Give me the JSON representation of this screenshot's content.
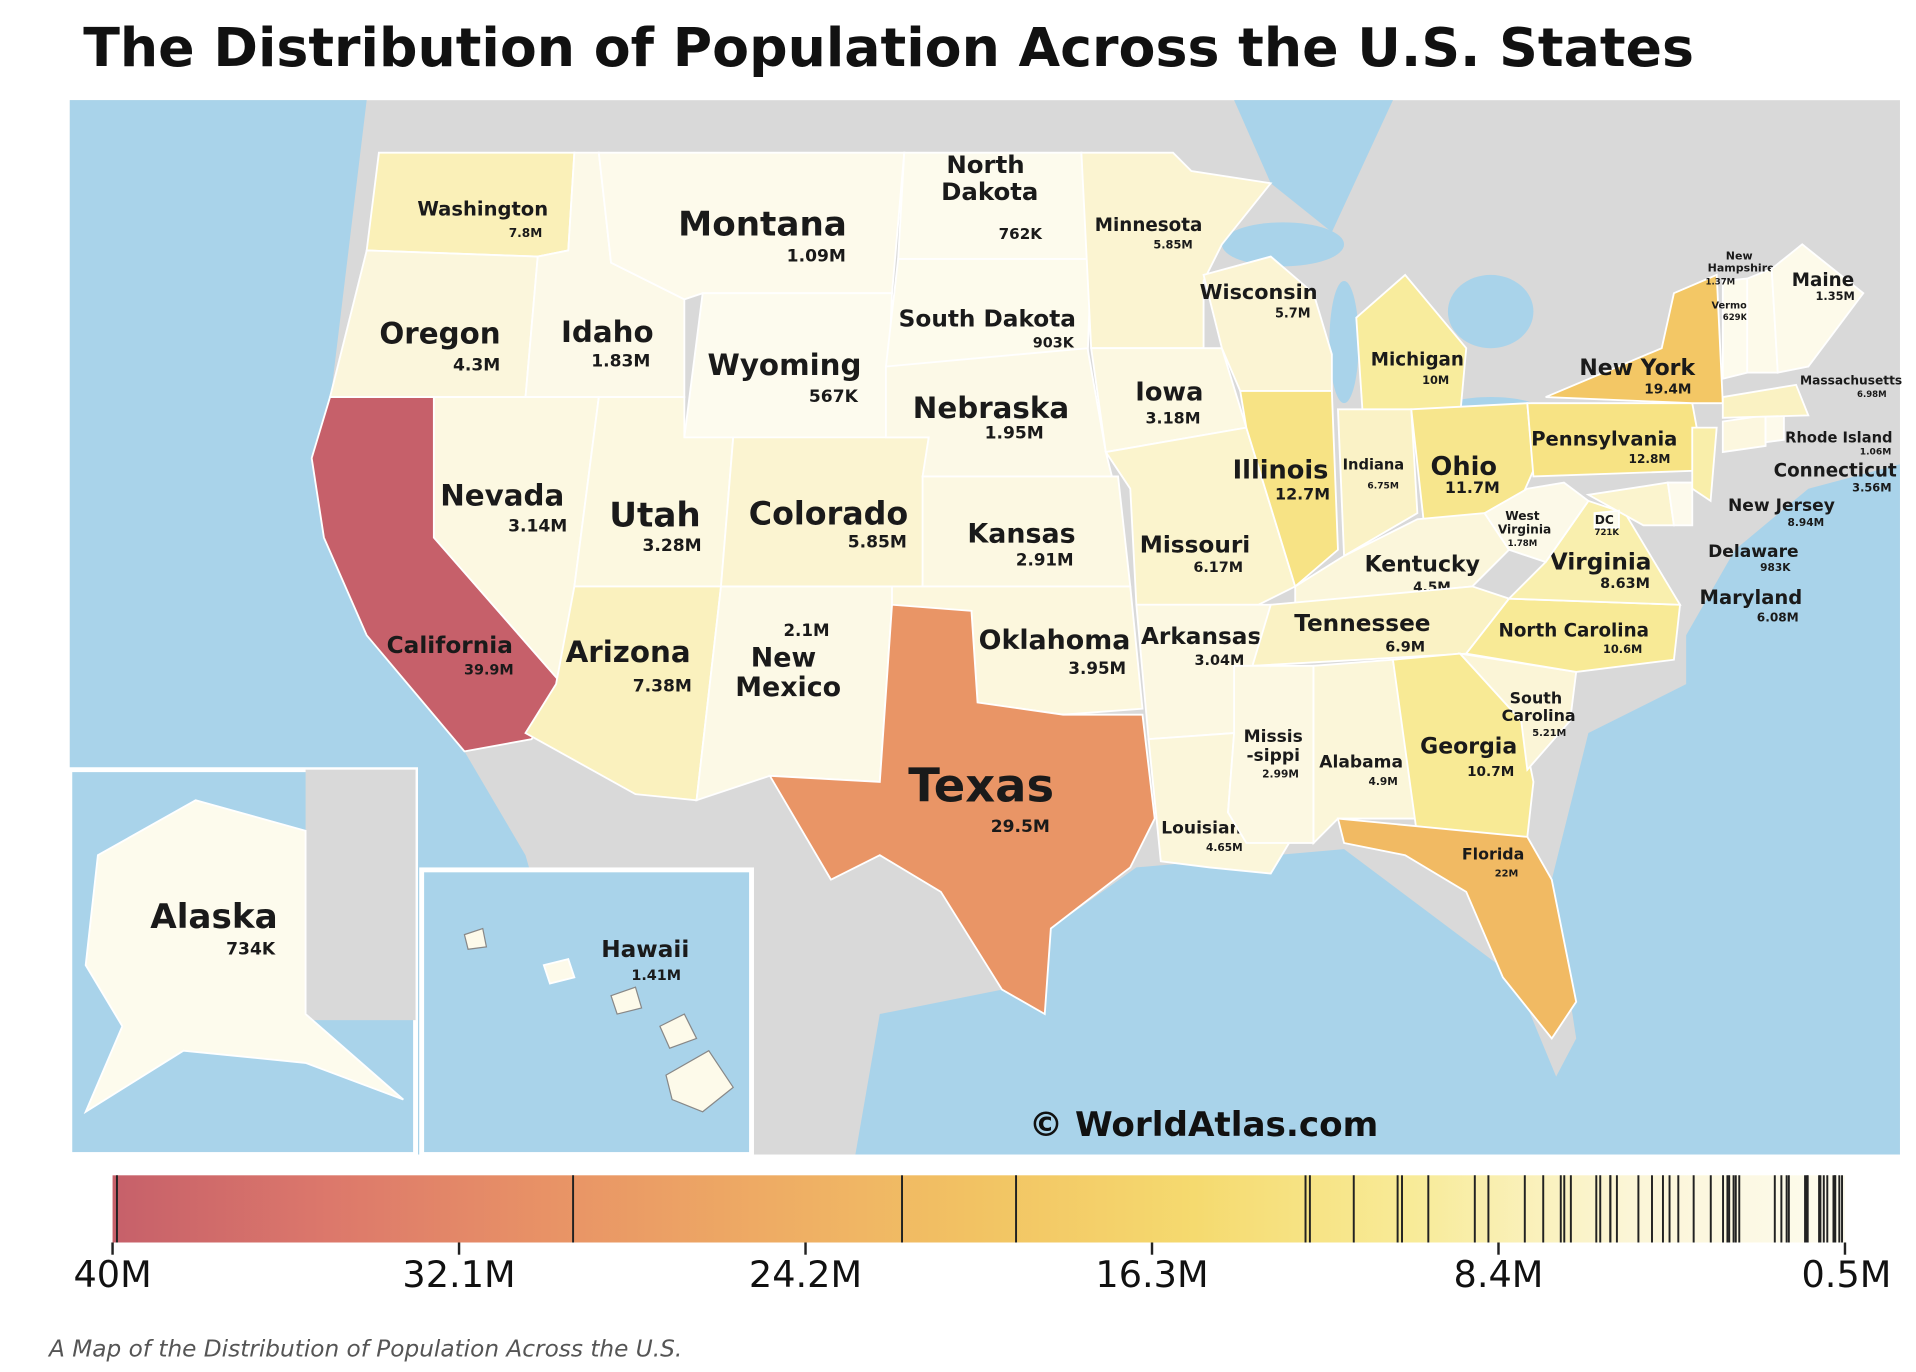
{
  "title": "The Distribution of Population Across the U.S. States",
  "map": {
    "states": [
      {
        "name": "Washington",
        "population": 7800000,
        "label": "7.8M"
      },
      {
        "name": "Oregon",
        "population": 4300000,
        "label": "4.3M"
      },
      {
        "name": "California",
        "population": 39900000,
        "label": "39.9M"
      },
      {
        "name": "Idaho",
        "population": 1830000,
        "label": "1.83M"
      },
      {
        "name": "Nevada",
        "population": 3140000,
        "label": "3.14M"
      },
      {
        "name": "Montana",
        "population": 1090000,
        "label": "1.09M"
      },
      {
        "name": "Wyoming",
        "population": 567000,
        "label": "567K"
      },
      {
        "name": "Utah",
        "population": 3280000,
        "label": "3.28M"
      },
      {
        "name": "Arizona",
        "population": 7380000,
        "label": "7.38M"
      },
      {
        "name": "Colorado",
        "population": 5850000,
        "label": "5.85M"
      },
      {
        "name": "New Mexico",
        "population": 2100000,
        "label": "2.1M"
      },
      {
        "name": "North Dakota",
        "population": 762000,
        "label": "762K"
      },
      {
        "name": "South Dakota",
        "population": 903000,
        "label": "903K"
      },
      {
        "name": "Nebraska",
        "population": 1950000,
        "label": "1.95M"
      },
      {
        "name": "Kansas",
        "population": 2910000,
        "label": "2.91M"
      },
      {
        "name": "Oklahoma",
        "population": 3950000,
        "label": "3.95M"
      },
      {
        "name": "Texas",
        "population": 29500000,
        "label": "29.5M"
      },
      {
        "name": "Minnesota",
        "population": 5850000,
        "label": "5.85M"
      },
      {
        "name": "Iowa",
        "population": 3180000,
        "label": "3.18M"
      },
      {
        "name": "Missouri",
        "population": 6170000,
        "label": "6.17M"
      },
      {
        "name": "Arkansas",
        "population": 3040000,
        "label": "3.04M"
      },
      {
        "name": "Louisiana",
        "population": 4650000,
        "label": "4.65M"
      },
      {
        "name": "Wisconsin",
        "population": 5700000,
        "label": "5.7M"
      },
      {
        "name": "Illinois",
        "population": 12700000,
        "label": "12.7M"
      },
      {
        "name": "Michigan",
        "population": 10000000,
        "label": "10M"
      },
      {
        "name": "Indiana",
        "population": 6750000,
        "label": "6.75M"
      },
      {
        "name": "Ohio",
        "population": 11700000,
        "label": "11.7M"
      },
      {
        "name": "Kentucky",
        "population": 4500000,
        "label": "4.5M"
      },
      {
        "name": "Tennessee",
        "population": 6900000,
        "label": "6.9M"
      },
      {
        "name": "Missis-sippi",
        "population": 2990000,
        "label": "2.99M"
      },
      {
        "name": "Alabama",
        "population": 4900000,
        "label": "4.9M"
      },
      {
        "name": "Georgia",
        "population": 10700000,
        "label": "10.7M"
      },
      {
        "name": "Florida",
        "population": 22000000,
        "label": "22M"
      },
      {
        "name": "South Carolina",
        "population": 5210000,
        "label": "5.21M"
      },
      {
        "name": "North Carolina",
        "population": 10600000,
        "label": "10.6M"
      },
      {
        "name": "Virginia",
        "population": 8630000,
        "label": "8.63M"
      },
      {
        "name": "West Virginia",
        "population": 1780000,
        "label": "1.78M"
      },
      {
        "name": "Pennsylvania",
        "population": 12800000,
        "label": "12.8M"
      },
      {
        "name": "New York",
        "population": 19400000,
        "label": "19.4M"
      },
      {
        "name": "Maryland",
        "population": 6080000,
        "label": "6.08M"
      },
      {
        "name": "Delaware",
        "population": 983000,
        "label": "983K"
      },
      {
        "name": "New Jersey",
        "population": 8940000,
        "label": "8.94M"
      },
      {
        "name": "DC",
        "population": 721000,
        "label": "721K"
      },
      {
        "name": "Connecticut",
        "population": 3560000,
        "label": "3.56M"
      },
      {
        "name": "Rhode Island",
        "population": 1060000,
        "label": "1.06M"
      },
      {
        "name": "Massachusetts",
        "population": 6980000,
        "label": "6.98M"
      },
      {
        "name": "Vermont",
        "population": 629000,
        "label": "629K"
      },
      {
        "name": "New Hampshire",
        "population": 1370000,
        "label": "1.37M"
      },
      {
        "name": "Maine",
        "population": 1350000,
        "label": "1.35M"
      },
      {
        "name": "Alaska",
        "population": 734000,
        "label": "734K"
      },
      {
        "name": "Hawaii",
        "population": 1410000,
        "label": "1.41M"
      }
    ],
    "watermark": "© WorldAtlas.com",
    "legend": {
      "range": [
        40000000,
        500000
      ],
      "colors": [
        "#c6606a",
        "#dc786b",
        "#e89266",
        "#eeab64",
        "#f2c363",
        "#f5da6f",
        "#f8eb98",
        "#fbf5d6",
        "#fdfbee"
      ],
      "ticks": [
        {
          "value": 40000000,
          "label": "40M"
        },
        {
          "value": 32100000,
          "label": "32.1M"
        },
        {
          "value": 24200000,
          "label": "24.2M"
        },
        {
          "value": 16300000,
          "label": "16.3M"
        },
        {
          "value": 8400000,
          "label": "8.4M"
        },
        {
          "value": 500000,
          "label": "0.5M"
        }
      ]
    }
  },
  "caption": "A Map of the Distribution of Population Across the U.S."
}
